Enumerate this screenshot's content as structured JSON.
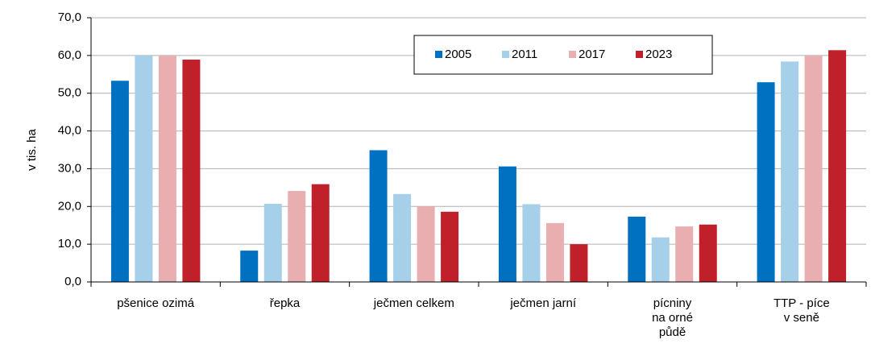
{
  "chart_data": {
    "type": "bar",
    "y_label": "v tis. ha",
    "categories": [
      "pšenice ozimá",
      "řepka",
      "ječmen celkem",
      "ječmen jarní",
      "pícniny\nna orné\npůdě",
      "TTP - píce\nv seně"
    ],
    "series": [
      {
        "name": "2005",
        "color": "#0070c0",
        "values": [
          53.3,
          8.3,
          34.9,
          30.6,
          17.3,
          52.9
        ]
      },
      {
        "name": "2011",
        "color": "#a6cfea",
        "values": [
          60.0,
          20.7,
          23.3,
          20.6,
          11.8,
          58.4
        ]
      },
      {
        "name": "2017",
        "color": "#e8aeb0",
        "values": [
          60.0,
          24.1,
          20.0,
          15.6,
          14.7,
          60.0
        ]
      },
      {
        "name": "2023",
        "color": "#c0202a",
        "values": [
          58.9,
          25.9,
          18.6,
          10.0,
          15.2,
          61.4
        ]
      }
    ],
    "ylim": [
      0,
      70
    ],
    "yticks": [
      {
        "value": 0,
        "label": "0,0"
      },
      {
        "value": 10,
        "label": "10,0"
      },
      {
        "value": 20,
        "label": "20,0"
      },
      {
        "value": 30,
        "label": "30,0"
      },
      {
        "value": 40,
        "label": "40,0"
      },
      {
        "value": 50,
        "label": "50,0"
      },
      {
        "value": 60,
        "label": "60,0"
      },
      {
        "value": 70,
        "label": "70,0"
      }
    ],
    "grid": true
  }
}
